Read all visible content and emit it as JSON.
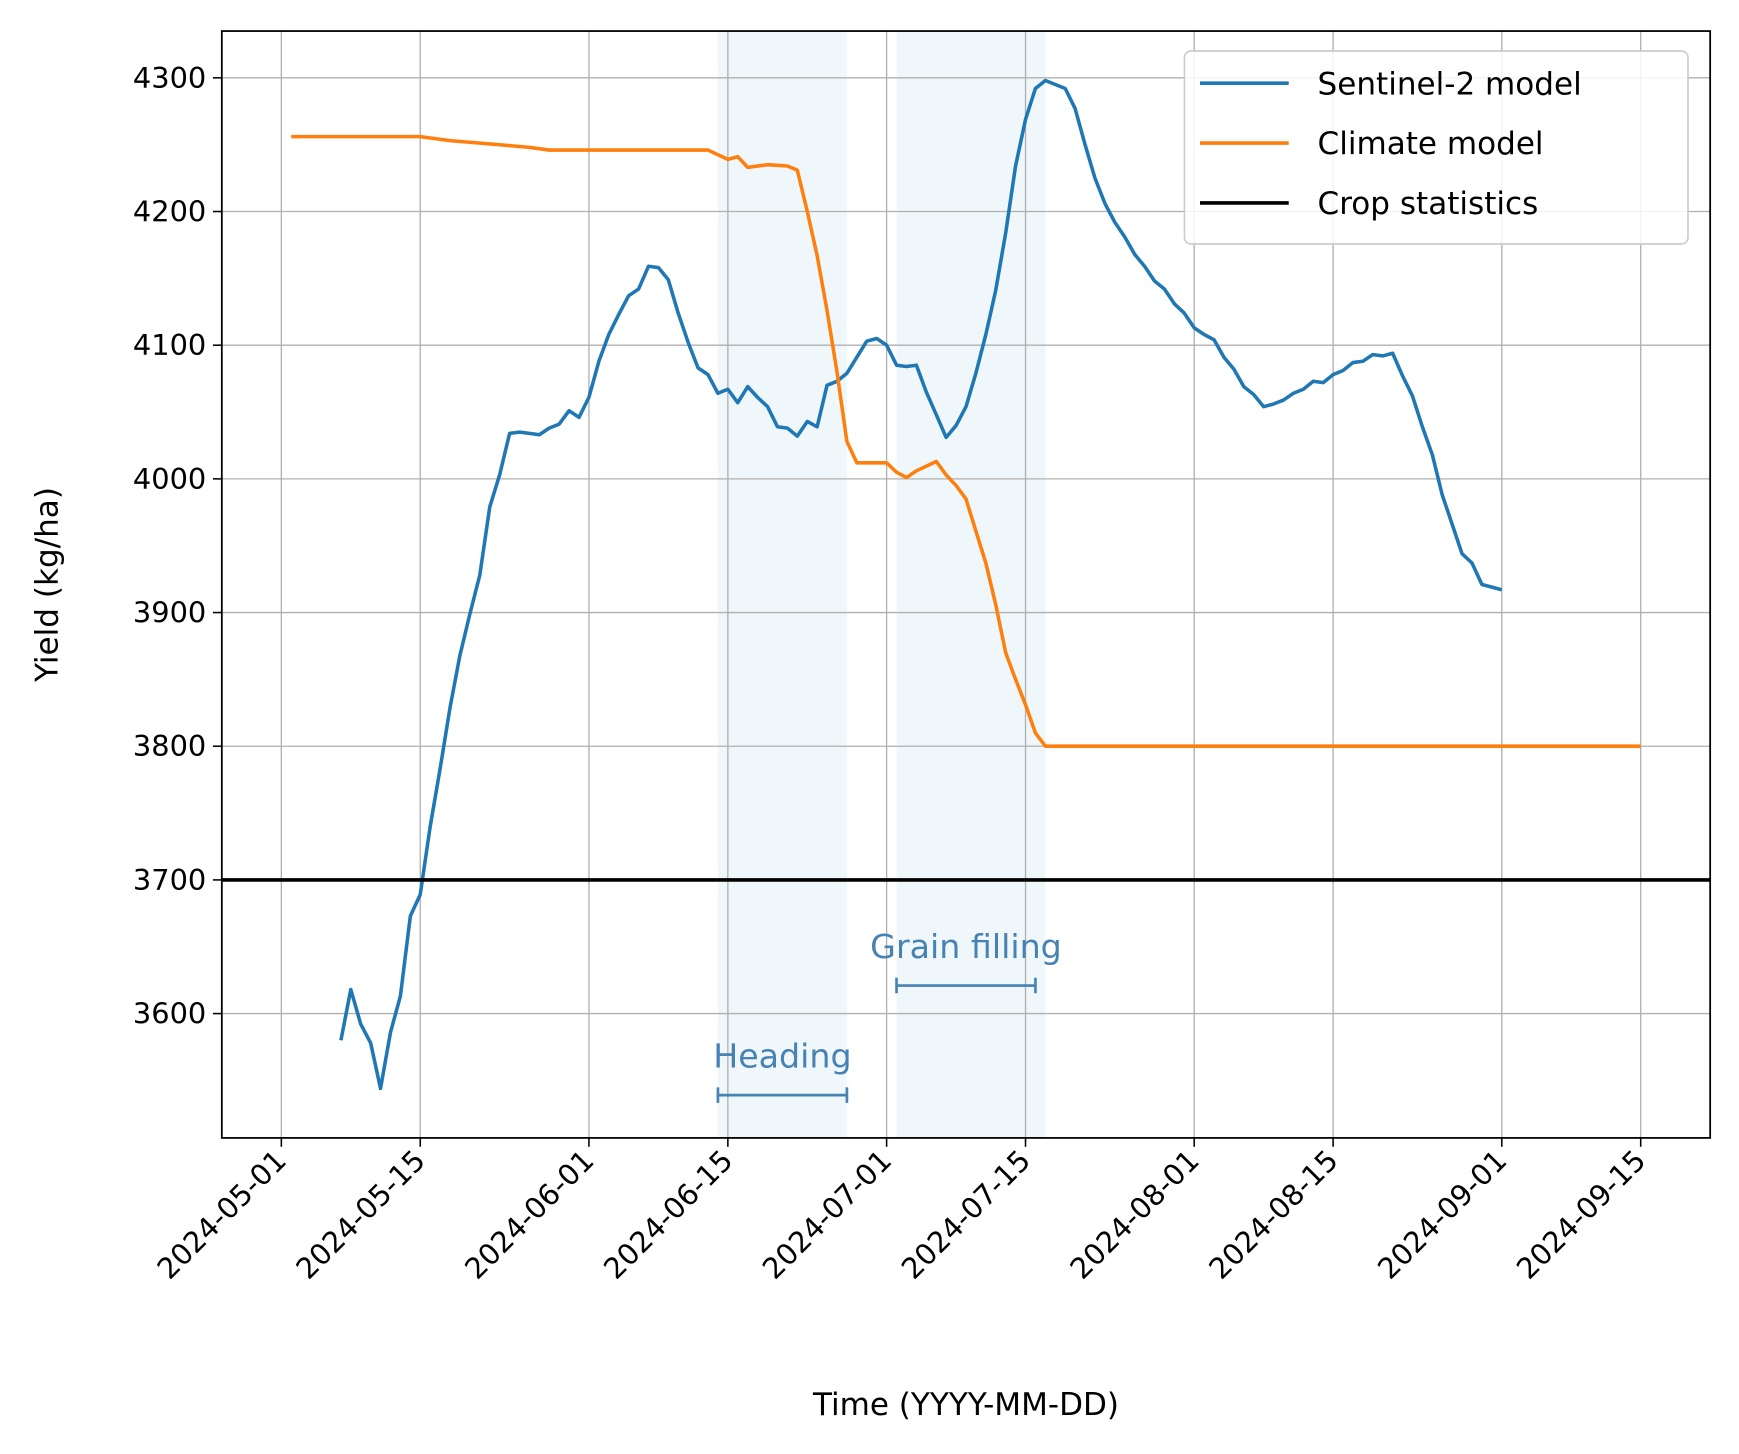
{
  "chart_data": {
    "type": "line",
    "title": "",
    "xlabel": "Time (YYYY-MM-DD)",
    "ylabel": "Yield (kg/ha)",
    "xlim": [
      "2024-04-25",
      "2024-09-22"
    ],
    "ylim": [
      3507,
      4335
    ],
    "grid": true,
    "legend_placement": "top-right",
    "x_ticks": [
      "2024-05-01",
      "2024-05-15",
      "2024-06-01",
      "2024-06-15",
      "2024-07-01",
      "2024-07-15",
      "2024-08-01",
      "2024-08-15",
      "2024-09-01",
      "2024-09-15"
    ],
    "y_ticks": [
      3600,
      3700,
      3800,
      3900,
      4000,
      4100,
      4200,
      4300
    ],
    "series": [
      {
        "name": "Sentinel-2 model",
        "color": "#1f77b4",
        "x": [
          "2024-05-07",
          "2024-05-08",
          "2024-05-09",
          "2024-05-10",
          "2024-05-11",
          "2024-05-12",
          "2024-05-13",
          "2024-05-14",
          "2024-05-15",
          "2024-05-16",
          "2024-05-17",
          "2024-05-18",
          "2024-05-19",
          "2024-05-20",
          "2024-05-21",
          "2024-05-22",
          "2024-05-23",
          "2024-05-24",
          "2024-05-25",
          "2024-05-26",
          "2024-05-27",
          "2024-05-28",
          "2024-05-29",
          "2024-05-30",
          "2024-05-31",
          "2024-06-01",
          "2024-06-02",
          "2024-06-03",
          "2024-06-04",
          "2024-06-05",
          "2024-06-06",
          "2024-06-07",
          "2024-06-08",
          "2024-06-09",
          "2024-06-10",
          "2024-06-11",
          "2024-06-12",
          "2024-06-13",
          "2024-06-14",
          "2024-06-15",
          "2024-06-16",
          "2024-06-17",
          "2024-06-18",
          "2024-06-19",
          "2024-06-20",
          "2024-06-21",
          "2024-06-22",
          "2024-06-23",
          "2024-06-24",
          "2024-06-25",
          "2024-06-26",
          "2024-06-27",
          "2024-06-28",
          "2024-06-29",
          "2024-06-30",
          "2024-07-01",
          "2024-07-02",
          "2024-07-03",
          "2024-07-04",
          "2024-07-05",
          "2024-07-06",
          "2024-07-07",
          "2024-07-08",
          "2024-07-09",
          "2024-07-10",
          "2024-07-11",
          "2024-07-12",
          "2024-07-13",
          "2024-07-14",
          "2024-07-15",
          "2024-07-16",
          "2024-07-17",
          "2024-07-18",
          "2024-07-19",
          "2024-07-20",
          "2024-07-21",
          "2024-07-22",
          "2024-07-23",
          "2024-07-24",
          "2024-07-25",
          "2024-07-26",
          "2024-07-27",
          "2024-07-28",
          "2024-07-29",
          "2024-07-30",
          "2024-07-31",
          "2024-08-01",
          "2024-08-02",
          "2024-08-03",
          "2024-08-04",
          "2024-08-05",
          "2024-08-06",
          "2024-08-07",
          "2024-08-08",
          "2024-08-09",
          "2024-08-10",
          "2024-08-11",
          "2024-08-12",
          "2024-08-13",
          "2024-08-14",
          "2024-08-15",
          "2024-08-16",
          "2024-08-17",
          "2024-08-18",
          "2024-08-19",
          "2024-08-20",
          "2024-08-21",
          "2024-08-22",
          "2024-08-23",
          "2024-08-24",
          "2024-08-25",
          "2024-08-26",
          "2024-08-27",
          "2024-08-28",
          "2024-08-29",
          "2024-08-30",
          "2024-08-31",
          "2024-09-01"
        ],
        "values": [
          3580,
          3618,
          3592,
          3578,
          3544,
          3586,
          3613,
          3673,
          3689,
          3740,
          3783,
          3829,
          3868,
          3899,
          3928,
          3979,
          4003,
          4034,
          4035,
          4034,
          4033,
          4038,
          4041,
          4051,
          4046,
          4061,
          4088,
          4108,
          4123,
          4137,
          4142,
          4159,
          4158,
          4149,
          4124,
          4102,
          4083,
          4078,
          4064,
          4067,
          4057,
          4069,
          4061,
          4054,
          4039,
          4038,
          4032,
          4043,
          4039,
          4070,
          4073,
          4079,
          4091,
          4103,
          4105,
          4100,
          4085,
          4084,
          4085,
          4065,
          4048,
          4031,
          4040,
          4054,
          4079,
          4108,
          4141,
          4184,
          4234,
          4269,
          4292,
          4298,
          4295,
          4292,
          4277,
          4250,
          4225,
          4206,
          4192,
          4181,
          4168,
          4159,
          4148,
          4142,
          4131,
          4124,
          4113,
          4108,
          4104,
          4091,
          4082,
          4069,
          4063,
          4054,
          4056,
          4059,
          4064,
          4067,
          4073,
          4072,
          4078,
          4081,
          4087,
          4088,
          4093,
          4092,
          4094,
          4077,
          4062,
          4039,
          4018,
          3988,
          3966,
          3944,
          3937,
          3921,
          3919,
          3917
        ]
      },
      {
        "name": "Climate model",
        "color": "#ff7f0e",
        "x": [
          "2024-05-02",
          "2024-05-15",
          "2024-05-18",
          "2024-05-23",
          "2024-05-26",
          "2024-05-28",
          "2024-06-13",
          "2024-06-15",
          "2024-06-16",
          "2024-06-17",
          "2024-06-19",
          "2024-06-21",
          "2024-06-22",
          "2024-06-23",
          "2024-06-24",
          "2024-06-25",
          "2024-06-26",
          "2024-06-27",
          "2024-06-28",
          "2024-07-01",
          "2024-07-02",
          "2024-07-03",
          "2024-07-04",
          "2024-07-06",
          "2024-07-07",
          "2024-07-08",
          "2024-07-09",
          "2024-07-10",
          "2024-07-11",
          "2024-07-12",
          "2024-07-13",
          "2024-07-14",
          "2024-07-15",
          "2024-07-16",
          "2024-07-17",
          "2024-09-15"
        ],
        "values": [
          4256,
          4256,
          4253,
          4250,
          4248,
          4246,
          4246,
          4239,
          4241,
          4233,
          4235,
          4234,
          4231,
          4200,
          4167,
          4126,
          4080,
          4028,
          4012,
          4012,
          4005,
          4001,
          4006,
          4013,
          4003,
          3995,
          3985,
          3961,
          3937,
          3906,
          3870,
          3850,
          3831,
          3810,
          3800,
          3800
        ]
      },
      {
        "name": "Crop statistics",
        "color": "#000000",
        "type": "hline",
        "value": 3700
      }
    ],
    "shaded_periods": [
      {
        "start": "2024-06-14",
        "end": "2024-06-27",
        "color": "#add8e6"
      },
      {
        "start": "2024-07-02",
        "end": "2024-07-17",
        "color": "#add8e6"
      }
    ],
    "annotations": [
      {
        "text": "Heading",
        "start": "2024-06-14",
        "end": "2024-06-27",
        "y": 3539,
        "color": "#4682b4"
      },
      {
        "text": "Grain filling",
        "start": "2024-07-02",
        "end": "2024-07-16",
        "y": 3621,
        "color": "#4682b4"
      }
    ]
  }
}
